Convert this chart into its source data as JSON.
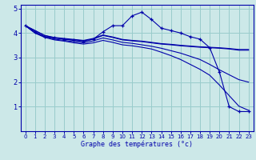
{
  "bg_color": "#cce8e8",
  "line_color": "#0000aa",
  "grid_color": "#99cccc",
  "xlabel": "Graphe des températures (°c)",
  "xlim": [
    -0.5,
    23.5
  ],
  "ylim": [
    0,
    5.15
  ],
  "xticks": [
    0,
    1,
    2,
    3,
    4,
    5,
    6,
    7,
    8,
    9,
    10,
    11,
    12,
    13,
    14,
    15,
    16,
    17,
    18,
    19,
    20,
    21,
    22,
    23
  ],
  "yticks": [
    1,
    2,
    3,
    4,
    5
  ],
  "series": [
    {
      "x": [
        0,
        1,
        2,
        3,
        4,
        5,
        6,
        7,
        8,
        9,
        10,
        11,
        12,
        13,
        14,
        15,
        16,
        17,
        18,
        19,
        20,
        21,
        22,
        23
      ],
      "y": [
        4.3,
        4.05,
        3.85,
        3.8,
        3.75,
        3.7,
        3.65,
        3.75,
        4.05,
        4.3,
        4.3,
        4.7,
        4.85,
        4.55,
        4.2,
        4.1,
        4.0,
        3.85,
        3.75,
        3.4,
        2.4,
        1.0,
        0.8,
        0.8
      ],
      "marker": true
    },
    {
      "x": [
        0,
        1,
        2,
        3,
        4,
        5,
        6,
        7,
        8,
        9,
        10,
        11,
        12,
        13,
        14,
        15,
        16,
        17,
        18,
        19,
        20,
        21,
        22,
        23
      ],
      "y": [
        4.3,
        4.1,
        3.9,
        3.8,
        3.75,
        3.72,
        3.68,
        3.75,
        3.9,
        3.82,
        3.72,
        3.68,
        3.65,
        3.6,
        3.55,
        3.52,
        3.48,
        3.45,
        3.42,
        3.4,
        3.38,
        3.35,
        3.3,
        3.3
      ],
      "marker": false
    },
    {
      "x": [
        0,
        1,
        2,
        3,
        4,
        5,
        6,
        7,
        8,
        9,
        10,
        11,
        12,
        13,
        14,
        15,
        16,
        17,
        18,
        19,
        20,
        21,
        22,
        23
      ],
      "y": [
        4.3,
        4.1,
        3.9,
        3.82,
        3.78,
        3.74,
        3.7,
        3.78,
        3.92,
        3.84,
        3.74,
        3.7,
        3.67,
        3.62,
        3.57,
        3.54,
        3.5,
        3.47,
        3.44,
        3.42,
        3.4,
        3.37,
        3.33,
        3.33
      ],
      "marker": false
    },
    {
      "x": [
        0,
        1,
        2,
        3,
        4,
        5,
        6,
        7,
        8,
        9,
        10,
        11,
        12,
        13,
        14,
        15,
        16,
        17,
        18,
        19,
        20,
        21,
        22,
        23
      ],
      "y": [
        4.3,
        4.0,
        3.82,
        3.72,
        3.67,
        3.6,
        3.55,
        3.6,
        3.7,
        3.62,
        3.52,
        3.48,
        3.42,
        3.35,
        3.22,
        3.08,
        2.92,
        2.72,
        2.52,
        2.28,
        1.88,
        1.45,
        1.02,
        0.85
      ],
      "marker": false
    },
    {
      "x": [
        0,
        1,
        2,
        3,
        4,
        5,
        6,
        7,
        8,
        9,
        10,
        11,
        12,
        13,
        14,
        15,
        16,
        17,
        18,
        19,
        20,
        21,
        22,
        23
      ],
      "y": [
        4.3,
        4.0,
        3.85,
        3.75,
        3.7,
        3.65,
        3.6,
        3.68,
        3.8,
        3.72,
        3.62,
        3.58,
        3.52,
        3.46,
        3.38,
        3.28,
        3.18,
        3.05,
        2.92,
        2.72,
        2.5,
        2.3,
        2.1,
        2.0
      ],
      "marker": false
    }
  ]
}
